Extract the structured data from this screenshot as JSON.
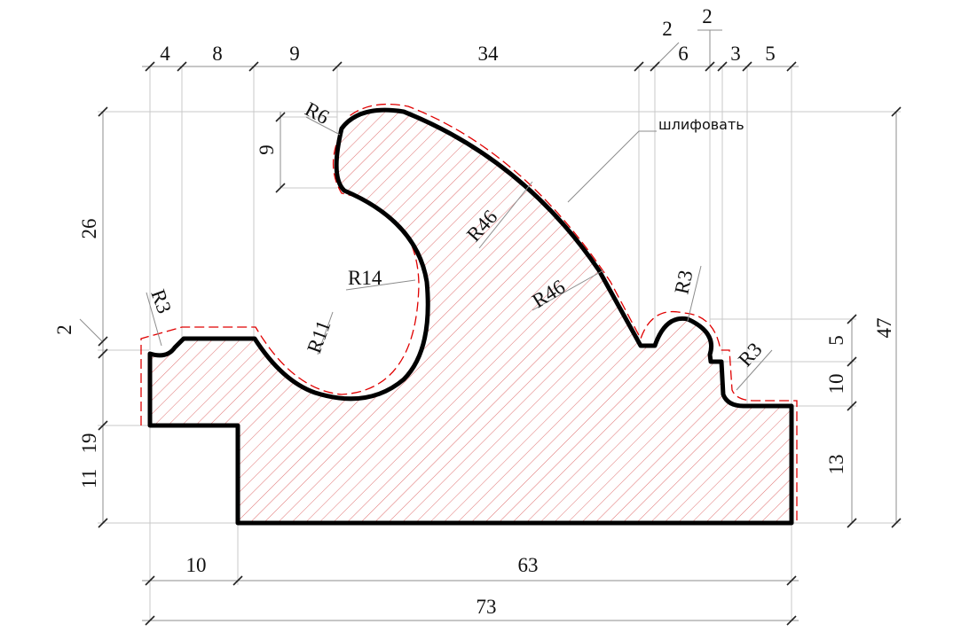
{
  "drawing": {
    "note": "шлифовать",
    "dims_top": [
      "4",
      "8",
      "9",
      "34",
      "2",
      "6",
      "2",
      "3",
      "5"
    ],
    "dims_left": {
      "d26": "26",
      "d2": "2",
      "d19": "19",
      "d11": "11",
      "d9": "9"
    },
    "dims_right": {
      "d47": "47",
      "d5": "5",
      "d10": "10",
      "d13": "13"
    },
    "dims_bottom": {
      "d10": "10",
      "d63": "63",
      "d73": "73"
    },
    "radii": {
      "r6": "R6",
      "r14": "R14",
      "r11": "R11",
      "r3_left": "R3",
      "r46_upper": "R46",
      "r46_lower": "R46",
      "r3_bead": "R3",
      "r3_right": "R3"
    },
    "colors": {
      "outline": "#000000",
      "hatch": "#e05a5a",
      "offset": "#e00000"
    }
  }
}
